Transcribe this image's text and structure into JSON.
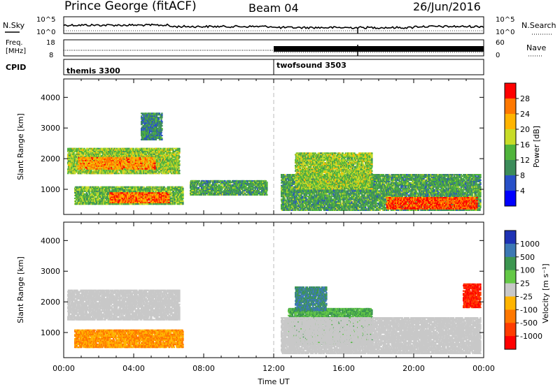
{
  "header": {
    "station": "Prince George (fitACF)",
    "beam": "Beam 04",
    "date": "26/Jun/2016"
  },
  "top_panels": {
    "nsky_label": "N.Sky",
    "nsearch_label": "N.Search",
    "freq_label_line1": "Freq.",
    "freq_label_line2": "[MHz]",
    "nave_label": "Nave",
    "cpid_label": "CPID",
    "noise_ticks": [
      "10^5",
      "10^0"
    ],
    "freq_ticks": [
      "18",
      "8"
    ],
    "nave_ticks": [
      "60",
      "0"
    ],
    "cpid_segments": [
      {
        "name": "themis 3300",
        "start_hour": 0,
        "end_hour": 12.0
      },
      {
        "name": "twofsound 3503",
        "start_hour": 12.0,
        "end_hour": 24
      }
    ]
  },
  "x_axis": {
    "label": "Time UT",
    "ticks": [
      "00:00",
      "04:00",
      "08:00",
      "12:00",
      "16:00",
      "20:00",
      "00:00"
    ],
    "range_hours": [
      0,
      24
    ]
  },
  "chart_data": [
    {
      "type": "heatmap",
      "name": "power",
      "ylabel": "Slant Range [km]",
      "ylim": [
        180,
        4600
      ],
      "yticks": [
        "1000",
        "2000",
        "3000",
        "4000"
      ],
      "colorbar_label": "Power [dB]",
      "colorbar_ticks": [
        "4",
        "8",
        "12",
        "16",
        "20",
        "24",
        "28"
      ],
      "colorbar_colors": [
        "#0000ff",
        "#2850c8",
        "#3c8c5a",
        "#50b43c",
        "#c8dc28",
        "#ffb400",
        "#ff7800",
        "#ff0000"
      ],
      "regions": [
        {
          "t0": 0.2,
          "t1": 6.6,
          "r0": 1500,
          "r1": 2350,
          "level": 16
        },
        {
          "t0": 0.8,
          "t1": 5.2,
          "r0": 1650,
          "r1": 2050,
          "level": 24
        },
        {
          "t0": 0.6,
          "t1": 6.8,
          "r0": 500,
          "r1": 1100,
          "level": 14
        },
        {
          "t0": 2.6,
          "t1": 6.0,
          "r0": 550,
          "r1": 900,
          "level": 26
        },
        {
          "t0": 4.4,
          "t1": 5.6,
          "r0": 2600,
          "r1": 3500,
          "level": 10
        },
        {
          "t0": 7.2,
          "t1": 11.6,
          "r0": 800,
          "r1": 1300,
          "level": 12
        },
        {
          "t0": 12.4,
          "t1": 23.8,
          "r0": 300,
          "r1": 1500,
          "level": 12
        },
        {
          "t0": 13.2,
          "t1": 17.6,
          "r0": 1000,
          "r1": 2200,
          "level": 16
        },
        {
          "t0": 18.4,
          "t1": 23.6,
          "r0": 350,
          "r1": 750,
          "level": 28
        }
      ]
    },
    {
      "type": "heatmap",
      "name": "velocity",
      "ylabel": "Slant Range [km]",
      "ylim": [
        180,
        4600
      ],
      "yticks": [
        "1000",
        "2000",
        "3000",
        "4000"
      ],
      "colorbar_label": "Velocity [m s⁻¹]",
      "colorbar_ticks": [
        "1000",
        "500",
        "100",
        "25",
        "-25",
        "-100",
        "-500",
        "-1000"
      ],
      "colorbar_colors": [
        "#1e32b4",
        "#3c78b4",
        "#3c9650",
        "#64c846",
        "#c8c8c8",
        "#ffb400",
        "#ff7800",
        "#ff3c00",
        "#ff0000"
      ],
      "regions": [
        {
          "t0": 0.2,
          "t1": 6.6,
          "r0": 1400,
          "r1": 2400,
          "value": 0
        },
        {
          "t0": 0.6,
          "t1": 6.8,
          "r0": 500,
          "r1": 1100,
          "value": -100
        },
        {
          "t0": 12.8,
          "t1": 17.6,
          "r0": 600,
          "r1": 1800,
          "value": 100
        },
        {
          "t0": 13.2,
          "t1": 15.0,
          "r0": 1700,
          "r1": 2500,
          "value": 500
        },
        {
          "t0": 12.4,
          "t1": 23.8,
          "r0": 300,
          "r1": 1500,
          "value": 0
        },
        {
          "t0": 22.8,
          "t1": 23.8,
          "r0": 1800,
          "r1": 2600,
          "value": -1000
        }
      ]
    }
  ]
}
